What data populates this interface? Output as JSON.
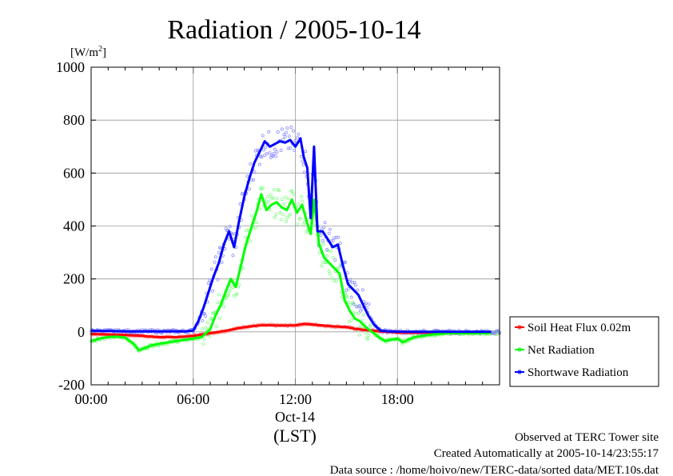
{
  "chart_data": {
    "type": "line",
    "title": "Radiation / 2005-10-14",
    "y_unit_label": "[W/m",
    "y_unit_sup": "2",
    "y_unit_close": "]",
    "ylim": [
      -200,
      1000
    ],
    "yticks": [
      -200,
      0,
      200,
      400,
      600,
      800,
      1000
    ],
    "xlim": [
      0,
      24
    ],
    "xticks": [
      {
        "h": 0,
        "label": "00:00"
      },
      {
        "h": 6,
        "label": "06:00"
      },
      {
        "h": 12,
        "label": "12:00"
      },
      {
        "h": 18,
        "label": "18:00"
      }
    ],
    "date_label": "Oct-14",
    "xlabel": "(LST)",
    "grid": true,
    "legend_position": "right",
    "series": [
      {
        "name": "Soil Heat Flux 0.02m",
        "color": "#ff0000",
        "scatter_color": "#ff9090",
        "x": [
          0,
          1,
          2,
          3,
          3.5,
          4,
          4.5,
          5,
          5.5,
          6,
          6.5,
          7,
          7.5,
          8,
          8.5,
          9,
          9.5,
          10,
          10.5,
          11,
          11.5,
          12,
          12.5,
          13,
          13.5,
          14,
          14.5,
          15,
          15.5,
          16,
          16.5,
          17,
          17.5,
          18,
          19,
          20,
          21,
          22,
          23.5
        ],
        "y": [
          -8,
          -10,
          -12,
          -15,
          -18,
          -20,
          -20,
          -20,
          -18,
          -15,
          -10,
          -5,
          0,
          5,
          12,
          18,
          22,
          25,
          25,
          24,
          24,
          25,
          30,
          28,
          25,
          22,
          20,
          18,
          12,
          8,
          5,
          2,
          0,
          -2,
          -3,
          -3,
          -3,
          -3,
          -3
        ]
      },
      {
        "name": "Net Radiation",
        "color": "#00ff00",
        "scatter_color": "#7cfc7c",
        "x": [
          0,
          0.5,
          1,
          1.5,
          2,
          2.5,
          2.8,
          3.2,
          3.6,
          4,
          4.5,
          5,
          5.5,
          6,
          6.5,
          7,
          7.3,
          7.6,
          7.9,
          8.2,
          8.5,
          8.8,
          9.1,
          9.4,
          9.7,
          10,
          10.3,
          10.6,
          10.9,
          11.2,
          11.5,
          11.8,
          12.1,
          12.4,
          12.7,
          12.9,
          13.1,
          13.4,
          13.7,
          14,
          14.3,
          14.6,
          14.9,
          15.2,
          15.5,
          15.8,
          16.1,
          16.4,
          16.7,
          17,
          17.3,
          17.6,
          18,
          18.3,
          18.6,
          19,
          19.5,
          20,
          21,
          22,
          23.5
        ],
        "y": [
          -35,
          -25,
          -20,
          -18,
          -22,
          -45,
          -70,
          -60,
          -50,
          -45,
          -40,
          -35,
          -30,
          -25,
          -20,
          10,
          60,
          100,
          150,
          200,
          170,
          250,
          330,
          390,
          450,
          520,
          460,
          480,
          490,
          470,
          460,
          500,
          450,
          480,
          410,
          370,
          500,
          330,
          280,
          260,
          240,
          220,
          120,
          80,
          50,
          40,
          20,
          5,
          -10,
          -25,
          -35,
          -30,
          -25,
          -40,
          -30,
          -20,
          -15,
          -10,
          -5,
          -5,
          -5
        ]
      },
      {
        "name": "Shortwave Radiation",
        "color": "#0000ff",
        "scatter_color": "#8080ff",
        "x": [
          0,
          1,
          2,
          3,
          4,
          5,
          5.5,
          6,
          6.3,
          6.6,
          6.9,
          7.2,
          7.5,
          7.8,
          8.1,
          8.4,
          8.7,
          9,
          9.3,
          9.6,
          9.9,
          10.2,
          10.5,
          10.8,
          11.1,
          11.4,
          11.7,
          12,
          12.3,
          12.5,
          12.7,
          12.9,
          13.1,
          13.3,
          13.6,
          13.9,
          14.2,
          14.5,
          14.8,
          15.1,
          15.4,
          15.7,
          16,
          16.3,
          16.6,
          17,
          17.5,
          18,
          19,
          20,
          21,
          22,
          23.5
        ],
        "y": [
          5,
          3,
          2,
          2,
          2,
          2,
          2,
          5,
          40,
          90,
          150,
          210,
          260,
          330,
          380,
          320,
          420,
          510,
          580,
          640,
          680,
          720,
          700,
          710,
          720,
          715,
          725,
          700,
          730,
          660,
          620,
          430,
          700,
          380,
          380,
          350,
          320,
          330,
          250,
          180,
          160,
          140,
          100,
          60,
          30,
          5,
          2,
          1,
          0,
          0,
          0,
          0,
          0
        ]
      }
    ]
  },
  "footer": {
    "line1": "Observed at TERC Tower site",
    "line2": "Created Automatically at 2005-10-14/23:55:17",
    "line3": "Data source : /home/hoivo/new/TERC-data/sorted  data/MET.10s.dat"
  }
}
